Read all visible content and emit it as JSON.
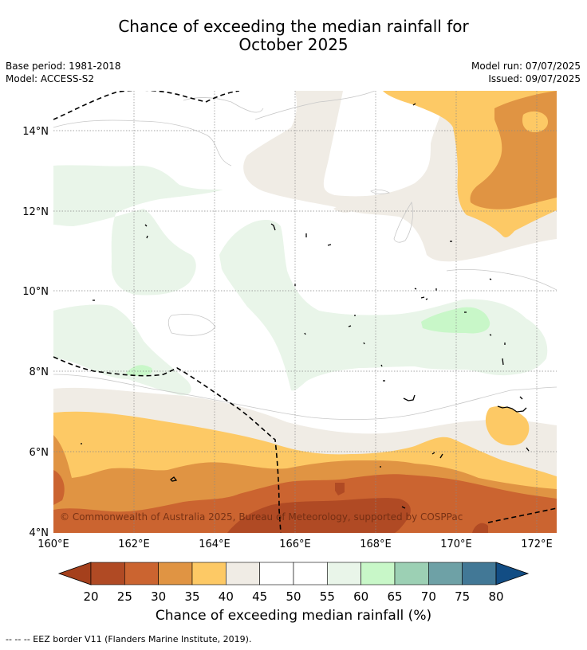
{
  "title_line1": "Chance of exceeding the median rainfall for",
  "title_line2": "October 2025",
  "meta_left": {
    "base_period": "Base period: 1981-2018",
    "model": "Model: ACCESS-S2"
  },
  "meta_right": {
    "model_run": "Model run: 07/07/2025",
    "issued": "Issued: 09/07/2025"
  },
  "map": {
    "lon_ticks": [
      "160°E",
      "162°E",
      "164°E",
      "166°E",
      "168°E",
      "170°E",
      "172°E"
    ],
    "lat_ticks": [
      "4°N",
      "6°N",
      "8°N",
      "10°N",
      "12°N",
      "14°N"
    ],
    "credit": "© Commonwealth of Australia 2025, Bureau of Meteorology, supported by COSPPac"
  },
  "colorbar": {
    "labels": [
      "20",
      "25",
      "30",
      "35",
      "40",
      "45",
      "50",
      "55",
      "60",
      "65",
      "70",
      "75",
      "80"
    ],
    "colors": [
      "#a5401c",
      "#b04a24",
      "#cb6430",
      "#e09443",
      "#fdc965",
      "#f0ece5",
      "#ffffff",
      "#ffffff",
      "#e9f5e9",
      "#c8f7c8",
      "#9cd0b4",
      "#6ea1a6",
      "#427896",
      "#124d84"
    ],
    "title": "Chance of exceeding median rainfall (%)"
  },
  "footnote": "--  --  -- EEZ border V11 (Flanders Marine Institute, 2019)."
}
